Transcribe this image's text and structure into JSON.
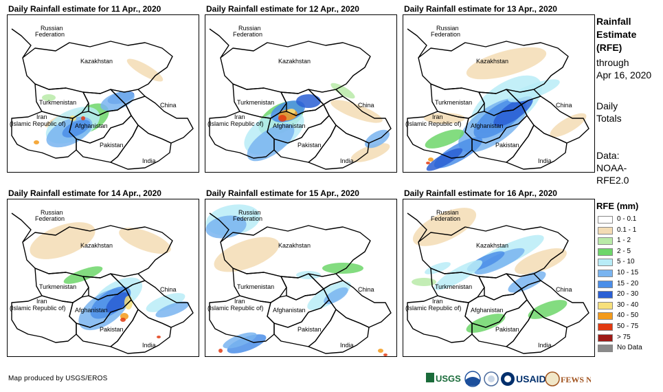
{
  "panels": [
    {
      "title": "Daily Rainfall estimate for 11 Apr., 2020"
    },
    {
      "title": "Daily Rainfall estimate for 12 Apr., 2020"
    },
    {
      "title": "Daily Rainfall estimate for 13 Apr., 2020"
    },
    {
      "title": "Daily Rainfall estimate for 14 Apr., 2020"
    },
    {
      "title": "Daily Rainfall estimate for 15 Apr., 2020"
    },
    {
      "title": "Daily Rainfall estimate for 16 Apr., 2020"
    }
  ],
  "map_labels": {
    "russia_1": "Russian",
    "russia_2": "Federation",
    "kazakhstan": "Kazakhstan",
    "turkmenistan": "Turkmenistan",
    "iran_1": "Iran",
    "iran_2": "(Islamic Republic of)",
    "afghanistan": "Afghanistan",
    "pakistan": "Pakistan",
    "china": "China",
    "india": "India"
  },
  "sidebar": {
    "title_line1": "Rainfall",
    "title_line2": "Estimate",
    "title_line3": "(RFE)",
    "through": "through",
    "date": "Apr 16, 2020",
    "daily": "Daily",
    "totals": "Totals",
    "data_label": "Data:",
    "source_1": "NOAA-",
    "source_2": "RFE2.0"
  },
  "legend": {
    "title": "RFE (mm)",
    "items": [
      {
        "label": "0 - 0.1",
        "color": "#ffffff"
      },
      {
        "label": "0.1 - 1",
        "color": "#f3dcb4"
      },
      {
        "label": "1 - 2",
        "color": "#b9eaa8"
      },
      {
        "label": "2 - 5",
        "color": "#6dd66a"
      },
      {
        "label": "5 - 10",
        "color": "#b8ecf7"
      },
      {
        "label": "10 - 15",
        "color": "#79b4f0"
      },
      {
        "label": "15 - 20",
        "color": "#4b8ee8"
      },
      {
        "label": "20 - 30",
        "color": "#2a5fd4"
      },
      {
        "label": "30 - 40",
        "color": "#f7e07c"
      },
      {
        "label": "40 - 50",
        "color": "#f39a1b"
      },
      {
        "label": "50 - 75",
        "color": "#e23a12"
      },
      {
        "label": "> 75",
        "color": "#9e1a16"
      },
      {
        "label": "No Data",
        "color": "#8a8a8a"
      }
    ]
  },
  "footer": {
    "credit": "Map produced by USGS/EROS",
    "logo_usgs": "USGS",
    "logo_usaid": "USAID",
    "logo_fewsnet": "FEWS NET"
  }
}
